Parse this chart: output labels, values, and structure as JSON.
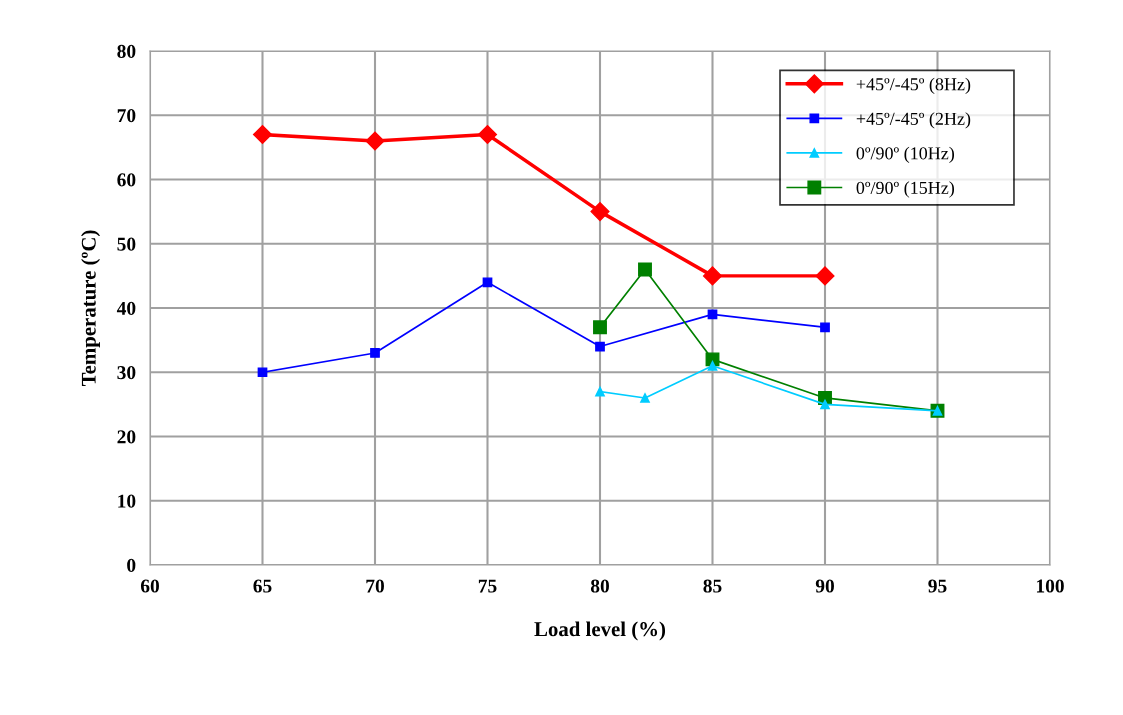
{
  "chart_data": {
    "type": "line",
    "xlabel": "Load level (%)",
    "ylabel": "Temperature (ºC)",
    "xlim": [
      60,
      100
    ],
    "xticks": [
      60,
      65,
      70,
      75,
      80,
      85,
      90,
      95,
      100
    ],
    "ylim": [
      0,
      80
    ],
    "yticks": [
      0,
      10,
      20,
      30,
      40,
      50,
      60,
      70,
      80
    ],
    "grid": true,
    "legend": "top right",
    "line_style": "solid",
    "series": [
      {
        "name": "+45º/-45º (8Hz)",
        "color": "#ff0000",
        "marker": "diamond",
        "x": [
          65,
          70,
          75,
          80,
          85,
          90
        ],
        "values": [
          67,
          66,
          67,
          55,
          45,
          45
        ]
      },
      {
        "name": "+45º/-45º (2Hz)",
        "color": "#0000ff",
        "marker": "square",
        "x": [
          65,
          70,
          75,
          80,
          85,
          90
        ],
        "values": [
          30,
          33,
          44,
          34,
          39,
          37
        ]
      },
      {
        "name": "0º/90º (10Hz)",
        "color": "#00ccff",
        "marker": "triangle",
        "x": [
          80,
          82,
          85,
          90,
          95
        ],
        "values": [
          27,
          26,
          31,
          25,
          24
        ]
      },
      {
        "name": "0º/90º (15Hz)",
        "color": "#008000",
        "marker": "square",
        "x": [
          80,
          82,
          85,
          90,
          95
        ],
        "values": [
          37,
          46,
          32,
          26,
          24
        ]
      }
    ]
  }
}
